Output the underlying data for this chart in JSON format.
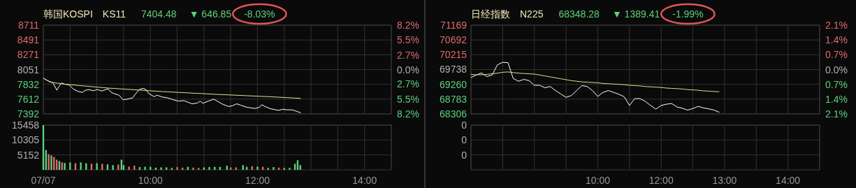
{
  "chart_data": [
    {
      "type": "line",
      "title": "韩国KOSPI",
      "subtitle": "KS11",
      "annotations": [
        "7404.48",
        "▼ 646.85",
        "-8.03%"
      ],
      "xlim": [
        8,
        14.5
      ],
      "xticks": [
        8,
        8.5,
        9,
        9.5,
        10,
        10.5,
        11,
        11.5,
        12,
        12.5,
        13,
        13.5,
        14,
        14.5
      ],
      "ylim": [
        7392,
        8711
      ],
      "yticks": [
        7392,
        7612,
        7832,
        8051,
        8271,
        8491,
        8711
      ],
      "y2lim": [
        -8.2,
        8.2
      ],
      "y2ticks": [
        {
          "value": -8.2,
          "label": "8.2%"
        },
        {
          "value": -5.5,
          "label": "5.5%"
        },
        {
          "value": -2.7,
          "label": "2.7%"
        },
        {
          "value": 0,
          "label": "0.0%"
        },
        {
          "value": 2.7,
          "label": "2.7%"
        },
        {
          "value": 5.5,
          "label": "5.5%"
        },
        {
          "value": 8.2,
          "label": "8.2%"
        }
      ],
      "tick_labels": "y",
      "grid": true,
      "series": [
        {
          "color": "#ffffff",
          "x": [
            8.0,
            8.051,
            8.126,
            8.177,
            8.253,
            8.278,
            8.343,
            8.404,
            8.48,
            8.556,
            8.657,
            8.732,
            8.783,
            8.859,
            8.934,
            9.01,
            9.086,
            9.162,
            9.212,
            9.263,
            9.313,
            9.414,
            9.49,
            9.566,
            9.667,
            9.717,
            9.793,
            9.869,
            9.919,
            9.97,
            10.071,
            10.121,
            10.222,
            10.323,
            10.424,
            10.525,
            10.626,
            10.727,
            10.778,
            10.879,
            10.929,
            10.98,
            11.081,
            11.182,
            11.232,
            11.333,
            11.46,
            11.535,
            11.611,
            11.687,
            11.788,
            11.914,
            11.965,
            12.04,
            12.081,
            12.141,
            12.242,
            12.394,
            12.47,
            12.545,
            12.646,
            12.722,
            12.808
          ],
          "values": [
            7926,
            7897,
            7873,
            7857,
            7744,
            7784,
            7853,
            7833,
            7825,
            7764,
            7724,
            7712,
            7744,
            7752,
            7736,
            7756,
            7732,
            7752,
            7764,
            7716,
            7695,
            7671,
            7603,
            7611,
            7631,
            7683,
            7756,
            7772,
            7752,
            7695,
            7647,
            7671,
            7643,
            7631,
            7603,
            7582,
            7590,
            7558,
            7542,
            7554,
            7582,
            7550,
            7582,
            7611,
            7590,
            7542,
            7502,
            7514,
            7542,
            7522,
            7493,
            7477,
            7473,
            7493,
            7530,
            7502,
            7469,
            7445,
            7461,
            7453,
            7453,
            7433,
            7409
          ]
        },
        {
          "color": "#e6dc8c",
          "x": [
            8.0,
            8.126,
            8.404,
            9.212,
            10.222,
            11.232,
            12.242,
            12.808
          ],
          "values": [
            7926,
            7865,
            7833,
            7776,
            7724,
            7683,
            7647,
            7623
          ]
        }
      ]
    },
    {
      "type": "bar",
      "xlim": [
        8,
        14.5
      ],
      "xticks": [
        {
          "value": 8,
          "label": "07/07"
        },
        {
          "value": 8.5,
          "label": null
        },
        {
          "value": 9,
          "label": null
        },
        {
          "value": 9.5,
          "label": null
        },
        {
          "value": 10,
          "label": "10:00"
        },
        {
          "value": 10.5,
          "label": null
        },
        {
          "value": 11,
          "label": null
        },
        {
          "value": 11.5,
          "label": null
        },
        {
          "value": 12,
          "label": "12:00"
        },
        {
          "value": 12.5,
          "label": null
        },
        {
          "value": 13,
          "label": null
        },
        {
          "value": 13.5,
          "label": null
        },
        {
          "value": 14,
          "label": "14:00"
        },
        {
          "value": 14.5,
          "label": null
        }
      ],
      "ylim": [
        0,
        15458
      ],
      "yticks": [
        5152,
        10305,
        15458
      ],
      "grid": true,
      "x": [
        8.0,
        8.05,
        8.1,
        8.15,
        8.2,
        8.25,
        8.3,
        8.35,
        8.4,
        8.5,
        8.6,
        8.7,
        8.8,
        8.9,
        9.0,
        9.1,
        9.2,
        9.3,
        9.4,
        9.46,
        9.5,
        9.6,
        9.7,
        9.8,
        9.9,
        10.0,
        10.1,
        10.2,
        10.3,
        10.4,
        10.5,
        10.6,
        10.7,
        10.8,
        10.9,
        11.0,
        11.1,
        11.2,
        11.3,
        11.43,
        11.5,
        11.6,
        11.73,
        11.8,
        11.9,
        12.0,
        12.1,
        12.2,
        12.3,
        12.4,
        12.5,
        12.6,
        12.7,
        12.75,
        12.8
      ],
      "values": [
        15458,
        6840,
        5415,
        4940,
        4465,
        3515,
        3040,
        2565,
        2375,
        2565,
        2280,
        2565,
        2280,
        2090,
        2280,
        2090,
        1900,
        1615,
        1805,
        3515,
        1615,
        1140,
        1425,
        950,
        1045,
        1045,
        760,
        855,
        855,
        665,
        950,
        760,
        1045,
        760,
        665,
        855,
        950,
        1045,
        1000,
        1425,
        855,
        855,
        1615,
        1045,
        1235,
        1140,
        1045,
        665,
        950,
        760,
        665,
        665,
        2090,
        3325,
        1615
      ],
      "colors": [
        "#5cd17a",
        "#5cd17a",
        "#e06a6a",
        "#5cd17a",
        "#e06a6a",
        "#e06a6a",
        "#5cd17a",
        "#e06a6a",
        "#5cd17a",
        "#5cd17a",
        "#e06a6a",
        "#5cd17a",
        "#5cd17a",
        "#e06a6a",
        "#5cd17a",
        "#e06a6a",
        "#5cd17a",
        "#5cd17a",
        "#e06a6a",
        "#5cd17a",
        "#5cd17a",
        "#e06a6a",
        "#e06a6a",
        "#5cd17a",
        "#5cd17a",
        "#5cd17a",
        "#5cd17a",
        "#5cd17a",
        "#5cd17a",
        "#5cd17a",
        "#e06a6a",
        "#e06a6a",
        "#5cd17a",
        "#e06a6a",
        "#e06a6a",
        "#5cd17a",
        "#5cd17a",
        "#5cd17a",
        "#5cd17a",
        "#5cd17a",
        "#e06a6a",
        "#e06a6a",
        "#5cd17a",
        "#5cd17a",
        "#e06a6a",
        "#5cd17a",
        "#e06a6a",
        "#5cd17a",
        "#5cd17a",
        "#e06a6a",
        "#5cd17a",
        "#5cd17a",
        "#5cd17a",
        "#5cd17a",
        "#5cd17a"
      ]
    },
    {
      "type": "line",
      "title": "日经指数",
      "subtitle": "N225",
      "annotations": [
        "68348.28",
        "▼ 1389.41",
        "-1.99%"
      ],
      "categories": [
        null,
        null,
        null,
        null,
        null,
        null,
        null,
        null,
        null,
        null,
        null,
        null,
        null,
        null,
        null,
        null,
        null,
        null,
        null,
        null,
        null,
        null,
        null,
        null,
        null,
        null,
        null,
        null,
        null,
        null,
        null,
        null,
        null,
        null,
        null,
        null,
        null,
        null,
        null,
        null,
        null,
        null,
        null,
        null,
        null,
        null,
        null,
        null,
        null,
        null,
        null,
        null,
        null,
        null,
        null,
        null,
        null,
        null,
        null,
        null,
        null,
        null,
        null,
        null,
        null,
        null,
        null
      ],
      "ylim": [
        68306,
        71169
      ],
      "yticks": [
        68306,
        68783,
        69260,
        69738,
        70215,
        70692,
        71169
      ],
      "y2lim": [
        -2.1,
        2.1
      ],
      "y2ticks": [
        {
          "value": -2.1,
          "label": "2.1%"
        },
        {
          "value": -1.4,
          "label": "1.4%"
        },
        {
          "value": -0.7,
          "label": "0.7%"
        },
        {
          "value": 0,
          "label": "0.0%"
        },
        {
          "value": 0.7,
          "label": "0.7%"
        },
        {
          "value": 1.4,
          "label": "1.4%"
        },
        {
          "value": 2.1,
          "label": "2.1%"
        }
      ],
      "tick_labels": "y",
      "grid": true,
      "series": [
        {
          "color": "#ffffff",
          "values": [
            69480,
            69560,
            69630,
            69510,
            69560,
            69890,
            69970,
            69960,
            69450,
            69360,
            69420,
            69380,
            69230,
            69230,
            69150,
            69190,
            69060,
            68950,
            68840,
            68900,
            69060,
            69220,
            69190,
            69060,
            68870,
            69000,
            69060,
            69000,
            68940,
            68860,
            68580,
            68800,
            68800,
            68710,
            68580,
            68460,
            68580,
            68620,
            68640,
            68530,
            68490,
            68430,
            68480,
            68550,
            68500,
            68470,
            68430,
            68360,
            null,
            null,
            null,
            null,
            null,
            null,
            null,
            null,
            null,
            null,
            null,
            null,
            null,
            null,
            null,
            null,
            null,
            null,
            null
          ]
        },
        {
          "color": "#e6dc8c",
          "values": [
            69580,
            69570,
            69570,
            69580,
            69600,
            69620,
            69650,
            69660,
            69640,
            69620,
            69610,
            69600,
            69590,
            69560,
            69530,
            69500,
            69470,
            69440,
            69410,
            69380,
            69360,
            69340,
            69330,
            69320,
            69310,
            69290,
            69280,
            69270,
            69260,
            69250,
            69230,
            69220,
            69210,
            69190,
            69180,
            69170,
            69160,
            69140,
            69130,
            69120,
            69110,
            69090,
            69080,
            69070,
            69050,
            69040,
            69030,
            69020,
            null,
            null,
            null,
            null,
            null,
            null,
            null,
            null,
            null,
            null,
            null,
            null,
            null,
            null,
            null,
            null,
            null,
            null,
            null
          ]
        }
      ]
    },
    {
      "type": "other",
      "annotations": [
        "0",
        "0",
        "0"
      ],
      "categories": [
        null,
        null,
        null,
        null,
        null,
        null,
        null,
        null,
        null,
        null,
        null,
        null,
        null,
        null,
        null,
        null,
        null,
        null,
        null,
        null,
        null,
        null,
        null,
        null,
        "10:00",
        null,
        null,
        null,
        null,
        null,
        null,
        null,
        null,
        null,
        null,
        null,
        "12:00",
        null,
        null,
        null,
        null,
        null,
        null,
        null,
        null,
        null,
        null,
        null,
        "13:00",
        null,
        null,
        null,
        null,
        null,
        null,
        null,
        null,
        null,
        null,
        null,
        "14:00",
        null,
        null,
        null,
        null,
        null,
        null
      ]
    }
  ]
}
